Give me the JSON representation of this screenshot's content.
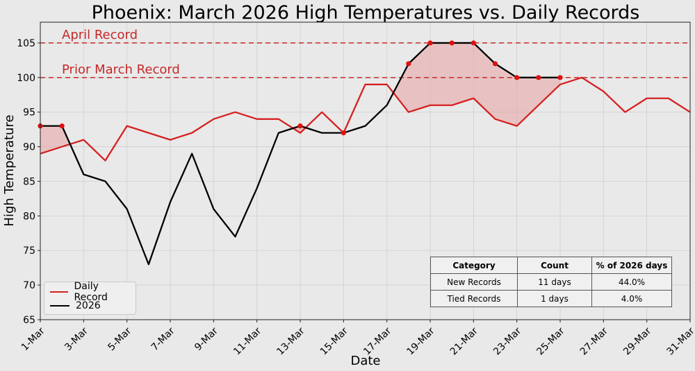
{
  "chart_data": {
    "type": "line",
    "title": "Phoenix: March 2026 High Temperatures vs. Daily Records",
    "xlabel": "Date",
    "ylabel": "High Temperature",
    "ylim": [
      65,
      108
    ],
    "yticks": [
      65,
      70,
      75,
      80,
      85,
      90,
      95,
      100,
      105
    ],
    "xticks": [
      "1-Mar",
      "3-Mar",
      "5-Mar",
      "7-Mar",
      "9-Mar",
      "11-Mar",
      "13-Mar",
      "15-Mar",
      "17-Mar",
      "19-Mar",
      "21-Mar",
      "23-Mar",
      "25-Mar",
      "27-Mar",
      "29-Mar",
      "31-Mar"
    ],
    "grid": true,
    "legend_position": "lower-left",
    "series": [
      {
        "name": "Daily Record",
        "color": "#d62020",
        "values": [
          89,
          90,
          91,
          88,
          93,
          92,
          91,
          92,
          94,
          95,
          94,
          94,
          92,
          95,
          92,
          99,
          99,
          95,
          96,
          96,
          97,
          94,
          93,
          96,
          99,
          100,
          98,
          95,
          97,
          97,
          95
        ]
      },
      {
        "name": "2026",
        "color": "#000000",
        "values": [
          93,
          93,
          86,
          85,
          81,
          73,
          82,
          89,
          81,
          77,
          84,
          92,
          93,
          92,
          92,
          93,
          96,
          102,
          105,
          105,
          105,
          102,
          100,
          100,
          100
        ]
      }
    ],
    "record_points": [
      {
        "day": 1,
        "value": 93
      },
      {
        "day": 2,
        "value": 93
      },
      {
        "day": 13,
        "value": 93
      },
      {
        "day": 15,
        "value": 92
      },
      {
        "day": 18,
        "value": 102
      },
      {
        "day": 19,
        "value": 105
      },
      {
        "day": 20,
        "value": 105
      },
      {
        "day": 21,
        "value": 105
      },
      {
        "day": 22,
        "value": 102
      },
      {
        "day": 23,
        "value": 100
      },
      {
        "day": 24,
        "value": 100
      },
      {
        "day": 25,
        "value": 100
      }
    ],
    "reference_lines": [
      {
        "label": "April Record",
        "value": 105,
        "color": "#c62828"
      },
      {
        "label": "Prior March Record",
        "value": 100,
        "color": "#c62828"
      }
    ],
    "table": {
      "headers": [
        "Category",
        "Count",
        "% of 2026 days"
      ],
      "rows": [
        [
          "New Records",
          "11 days",
          "44.0%"
        ],
        [
          "Tied Records",
          "1 days",
          "4.0%"
        ]
      ]
    }
  }
}
